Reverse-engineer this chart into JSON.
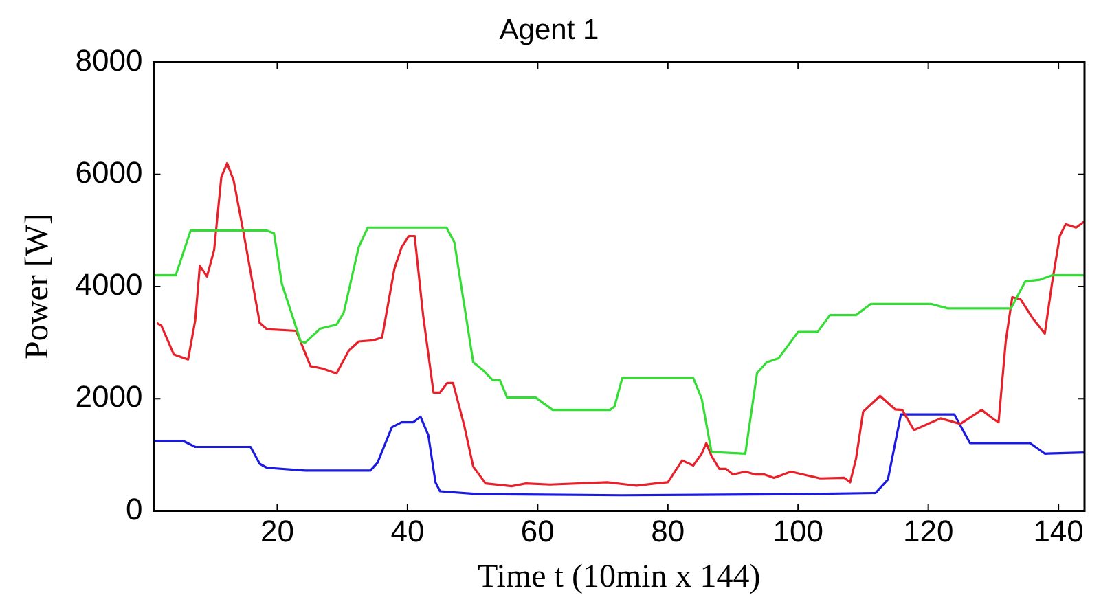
{
  "chart_data": {
    "type": "line",
    "title": "Agent 1",
    "xlabel": "Time t (10min x 144)",
    "ylabel": "Power [W]",
    "xlim": [
      1,
      144
    ],
    "xticks": [
      20,
      40,
      60,
      80,
      100,
      120,
      140
    ],
    "ylim": [
      0,
      8000
    ],
    "yticks": [
      0,
      2000,
      4000,
      6000,
      8000
    ],
    "grid": false,
    "legend": false,
    "marker": "none",
    "line_style": "solid",
    "series": [
      {
        "color": "#33dd33",
        "x": [
          1,
          4.4,
          6.7,
          18.3,
          19.5,
          20.7,
          23.6,
          24.3,
          26.6,
          29.1,
          30.2,
          32.5,
          33.9,
          46,
          47.2,
          50.1,
          51.6,
          53.1,
          54.2,
          55.3,
          59.7,
          62.3,
          71.1,
          71.8,
          73,
          83.9,
          85.2,
          86.7,
          91.9,
          93.7,
          95.2,
          97,
          100,
          103,
          104.9,
          108.9,
          111.2,
          120.4,
          123,
          132.7,
          134.9,
          137.1,
          139,
          144
        ],
        "values": [
          4200,
          4200,
          5000,
          5000,
          4950,
          4050,
          3020,
          3000,
          3250,
          3320,
          3530,
          4700,
          5050,
          5050,
          4790,
          2650,
          2510,
          2330,
          2330,
          2020,
          2020,
          1800,
          1800,
          1860,
          2370,
          2370,
          2000,
          1050,
          1020,
          2460,
          2650,
          2720,
          3190,
          3190,
          3490,
          3490,
          3690,
          3690,
          3610,
          3610,
          4090,
          4120,
          4200,
          4200
        ]
      },
      {
        "color": "#e8202a",
        "x": [
          1.5,
          2.2,
          4.1,
          6.3,
          7.4,
          8.1,
          9.2,
          10.3,
          11.4,
          12.3,
          13.3,
          14.8,
          17.3,
          18.4,
          22.9,
          25.1,
          26.9,
          29.1,
          31,
          32.5,
          34.7,
          36.1,
          38,
          39.1,
          40.2,
          41.1,
          42.4,
          44,
          45,
          46.1,
          47,
          48.7,
          50.1,
          52,
          56,
          58.2,
          61.9,
          70.7,
          73.7,
          75.2,
          78.1,
          80,
          82.2,
          83.9,
          85.2,
          85.9,
          86.7,
          87.9,
          88.9,
          90,
          91.9,
          93.4,
          94.8,
          96.3,
          98.9,
          103.4,
          107.1,
          108,
          108.9,
          110,
          112.6,
          114.9,
          116,
          117.8,
          121.9,
          124.9,
          128.2,
          130.1,
          130.8,
          131.9,
          132.9,
          134.2,
          136,
          137.9,
          139,
          140.2,
          141.1,
          142.7,
          144
        ],
        "values": [
          3350,
          3300,
          2790,
          2700,
          3400,
          4370,
          4180,
          4650,
          5950,
          6200,
          5890,
          4970,
          3350,
          3240,
          3210,
          2580,
          2540,
          2450,
          2860,
          3020,
          3040,
          3090,
          4320,
          4700,
          4900,
          4900,
          3490,
          2110,
          2110,
          2280,
          2280,
          1530,
          790,
          490,
          440,
          490,
          470,
          510,
          470,
          450,
          490,
          510,
          900,
          810,
          1020,
          1210,
          980,
          750,
          750,
          650,
          700,
          650,
          650,
          590,
          700,
          580,
          590,
          510,
          930,
          1770,
          2050,
          1810,
          1800,
          1440,
          1650,
          1550,
          1800,
          1630,
          1580,
          3020,
          3810,
          3770,
          3440,
          3160,
          4050,
          4900,
          5110,
          5050,
          5160
        ]
      },
      {
        "color": "#1a1ae0",
        "x": [
          1,
          5.5,
          7.4,
          15.9,
          17.3,
          18.4,
          24.3,
          34.3,
          35.4,
          37.6,
          39.1,
          40.9,
          42,
          43.2,
          44.3,
          45,
          50.9,
          72.9,
          100.4,
          111.9,
          113.8,
          115.8,
          124,
          126.4,
          135.6,
          137.9,
          144
        ],
        "values": [
          1250,
          1250,
          1140,
          1140,
          840,
          770,
          720,
          720,
          860,
          1490,
          1580,
          1580,
          1680,
          1350,
          510,
          350,
          300,
          280,
          300,
          320,
          560,
          1720,
          1720,
          1210,
          1210,
          1020,
          1040
        ]
      }
    ]
  }
}
